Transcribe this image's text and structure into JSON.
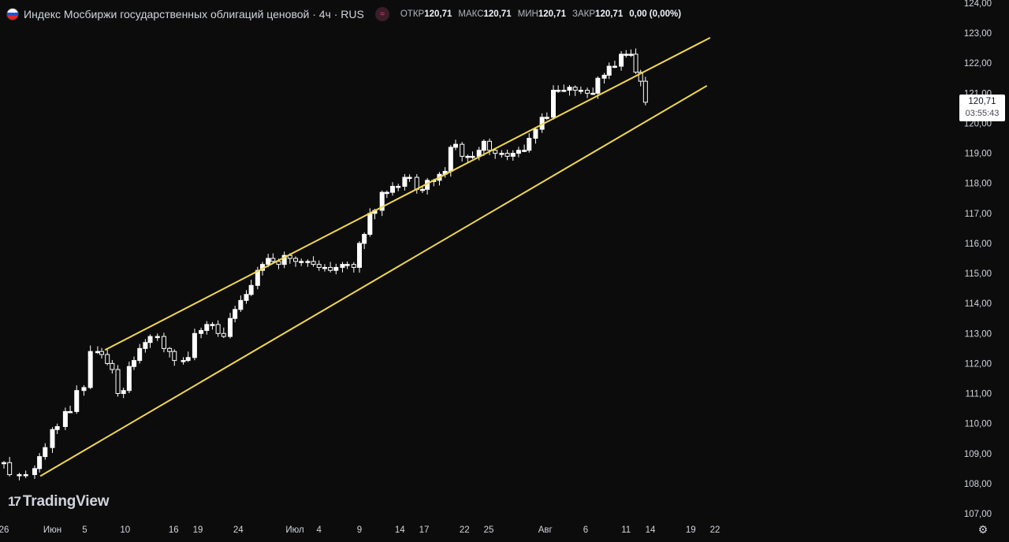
{
  "header": {
    "title": "Индекс Мосбиржи государственных облигаций ценовой · 4ч · RUS",
    "indicator_icon": "wave-icon",
    "ohlc": [
      {
        "label": "ОТКР",
        "value": "120,71"
      },
      {
        "label": "МАКС",
        "value": "120,71"
      },
      {
        "label": "МИН",
        "value": "120,71"
      },
      {
        "label": "ЗАКР",
        "value": "120,71"
      }
    ],
    "change": "0,00 (0,00%)"
  },
  "price_badge": {
    "price": "120,71",
    "countdown": "03:55:43"
  },
  "logo": {
    "mark": "17",
    "text": "TradingView"
  },
  "colors": {
    "background": "#0c0c0c",
    "candle": "#ffffff",
    "trendline": "#f0d74a",
    "text": "#d1d4dc"
  },
  "chart_data": {
    "type": "candlestick",
    "title": "",
    "ylim": [
      106.8,
      124.1
    ],
    "y_ticks": [
      "107,00",
      "108,00",
      "109,00",
      "110,00",
      "111,00",
      "112,00",
      "113,00",
      "114,00",
      "115,00",
      "116,00",
      "117,00",
      "118,00",
      "119,00",
      "120,00",
      "121,00",
      "122,00",
      "123,00",
      "124,00"
    ],
    "x_ticks": [
      {
        "label": "26",
        "day": 26
      },
      {
        "label": "Июн",
        "day": 32
      },
      {
        "label": "5",
        "day": 36
      },
      {
        "label": "10",
        "day": 41
      },
      {
        "label": "16",
        "day": 47
      },
      {
        "label": "19",
        "day": 50
      },
      {
        "label": "24",
        "day": 55
      },
      {
        "label": "Июл",
        "day": 62
      },
      {
        "label": "4",
        "day": 65
      },
      {
        "label": "9",
        "day": 70
      },
      {
        "label": "14",
        "day": 75
      },
      {
        "label": "17",
        "day": 78
      },
      {
        "label": "22",
        "day": 83
      },
      {
        "label": "25",
        "day": 86
      },
      {
        "label": "Авг",
        "day": 93
      },
      {
        "label": "6",
        "day": 98
      },
      {
        "label": "11",
        "day": 103
      },
      {
        "label": "14",
        "day": 106
      },
      {
        "label": "19",
        "day": 111
      },
      {
        "label": "22",
        "day": 114
      }
    ],
    "close_path": [
      [
        26.0,
        108.7
      ],
      [
        26.7,
        108.3
      ],
      [
        27.9,
        108.3
      ],
      [
        28.7,
        108.3
      ],
      [
        29.8,
        108.5
      ],
      [
        30.4,
        108.9
      ],
      [
        31.1,
        109.2
      ],
      [
        32.0,
        109.8
      ],
      [
        32.6,
        109.9
      ],
      [
        33.6,
        110.4
      ],
      [
        34.2,
        110.4
      ],
      [
        35.0,
        111.1
      ],
      [
        35.9,
        111.2
      ],
      [
        36.7,
        112.4
      ],
      [
        37.6,
        112.4
      ],
      [
        38.1,
        112.3
      ],
      [
        38.8,
        112.0
      ],
      [
        39.4,
        111.8
      ],
      [
        40.1,
        111.0
      ],
      [
        40.8,
        111.1
      ],
      [
        41.5,
        111.9
      ],
      [
        42.1,
        112.1
      ],
      [
        42.8,
        112.5
      ],
      [
        43.5,
        112.7
      ],
      [
        44.1,
        112.9
      ],
      [
        45.0,
        112.9
      ],
      [
        45.8,
        112.5
      ],
      [
        46.5,
        112.4
      ],
      [
        47.1,
        112.1
      ],
      [
        48.2,
        112.1
      ],
      [
        48.8,
        112.2
      ],
      [
        49.6,
        113.0
      ],
      [
        50.4,
        113.1
      ],
      [
        51.1,
        113.3
      ],
      [
        51.8,
        113.3
      ],
      [
        52.5,
        113.0
      ],
      [
        53.2,
        112.9
      ],
      [
        54.0,
        113.5
      ],
      [
        54.6,
        113.8
      ],
      [
        55.3,
        114.1
      ],
      [
        56.0,
        114.3
      ],
      [
        56.6,
        114.6
      ],
      [
        57.4,
        115.1
      ],
      [
        58.0,
        115.3
      ],
      [
        58.7,
        115.5
      ],
      [
        59.3,
        115.4
      ],
      [
        60.0,
        115.3
      ],
      [
        60.7,
        115.6
      ],
      [
        61.4,
        115.5
      ],
      [
        62.1,
        115.4
      ],
      [
        62.8,
        115.4
      ],
      [
        63.6,
        115.4
      ],
      [
        64.3,
        115.3
      ],
      [
        65.0,
        115.2
      ],
      [
        65.7,
        115.2
      ],
      [
        66.4,
        115.1
      ],
      [
        67.1,
        115.2
      ],
      [
        67.9,
        115.3
      ],
      [
        68.5,
        115.3
      ],
      [
        69.3,
        115.2
      ],
      [
        70.0,
        116.0
      ],
      [
        70.6,
        116.3
      ],
      [
        71.3,
        117.0
      ],
      [
        71.9,
        117.1
      ],
      [
        72.8,
        117.7
      ],
      [
        73.4,
        117.7
      ],
      [
        74.1,
        117.9
      ],
      [
        74.8,
        117.9
      ],
      [
        75.6,
        118.2
      ],
      [
        76.2,
        118.2
      ],
      [
        77.1,
        117.8
      ],
      [
        77.8,
        117.8
      ],
      [
        78.4,
        118.1
      ],
      [
        79.2,
        118.1
      ],
      [
        79.9,
        118.3
      ],
      [
        80.6,
        118.4
      ],
      [
        81.3,
        119.2
      ],
      [
        81.9,
        119.3
      ],
      [
        82.7,
        118.9
      ],
      [
        83.4,
        118.9
      ],
      [
        84.0,
        118.9
      ],
      [
        84.8,
        119.1
      ],
      [
        85.4,
        119.4
      ],
      [
        86.1,
        119.1
      ],
      [
        86.8,
        119.0
      ],
      [
        87.6,
        119.0
      ],
      [
        88.3,
        118.9
      ],
      [
        89.0,
        119.0
      ],
      [
        89.7,
        119.1
      ],
      [
        90.4,
        119.1
      ],
      [
        91.0,
        119.5
      ],
      [
        91.8,
        119.8
      ],
      [
        92.6,
        120.2
      ],
      [
        93.2,
        120.2
      ],
      [
        94.0,
        121.1
      ],
      [
        94.6,
        121.1
      ],
      [
        95.3,
        121.1
      ],
      [
        96.0,
        121.2
      ],
      [
        96.7,
        121.1
      ],
      [
        97.4,
        121.1
      ],
      [
        98.2,
        121.0
      ],
      [
        98.9,
        121.0
      ],
      [
        99.5,
        121.5
      ],
      [
        100.3,
        121.6
      ],
      [
        100.9,
        121.9
      ],
      [
        101.6,
        121.9
      ],
      [
        102.4,
        122.3
      ],
      [
        103.0,
        122.3
      ],
      [
        103.6,
        122.3
      ],
      [
        104.2,
        121.7
      ],
      [
        104.8,
        121.4
      ],
      [
        105.4,
        120.7
      ]
    ],
    "upper_channel": {
      "start": [
        38.5,
        112.45
      ],
      "end": [
        113.4,
        122.85
      ]
    },
    "lower_channel": {
      "start": [
        30.5,
        108.25
      ],
      "end": [
        113.0,
        121.25
      ]
    },
    "last_price": 120.71
  }
}
